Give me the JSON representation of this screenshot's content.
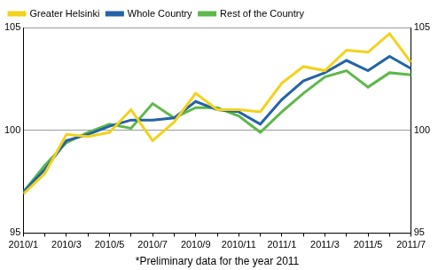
{
  "chart_data": {
    "type": "line",
    "annotations": [
      "*Preliminary data for the year 2011"
    ],
    "categories": [
      "2010/1",
      null,
      "2010/3",
      null,
      "2010/5",
      null,
      "2010/7",
      null,
      "2010/9",
      null,
      "2010/11",
      null,
      "2011/1",
      null,
      "2011/3",
      null,
      "2011/5",
      null,
      "2011/7"
    ],
    "series": [
      {
        "name": "Greater Helsinki",
        "color": "#f2d21b",
        "values": [
          96.9,
          97.9,
          99.8,
          99.7,
          99.9,
          101.0,
          99.5,
          100.4,
          101.8,
          101.0,
          101.0,
          100.9,
          102.3,
          103.1,
          102.9,
          103.9,
          103.8,
          104.7,
          103.3
        ]
      },
      {
        "name": "Whole Country",
        "color": "#2463a6",
        "values": [
          97.0,
          98.1,
          99.5,
          99.8,
          100.2,
          100.5,
          100.5,
          100.6,
          101.4,
          101.0,
          100.9,
          100.3,
          101.5,
          102.4,
          102.8,
          103.4,
          102.9,
          103.6,
          103.0
        ]
      },
      {
        "name": "Rest of the Country",
        "color": "#5db84a",
        "values": [
          97.0,
          98.3,
          99.4,
          99.9,
          100.3,
          100.1,
          101.3,
          100.6,
          101.1,
          101.1,
          100.7,
          99.9,
          100.9,
          101.8,
          102.6,
          102.9,
          102.1,
          102.8,
          102.7
        ]
      }
    ],
    "ylim": [
      95,
      105
    ],
    "yticks": [
      95,
      100,
      105
    ],
    "y2lim": [
      95,
      105
    ],
    "y2ticks": [
      95,
      100,
      105
    ],
    "grid": true,
    "legend": "upper left"
  }
}
